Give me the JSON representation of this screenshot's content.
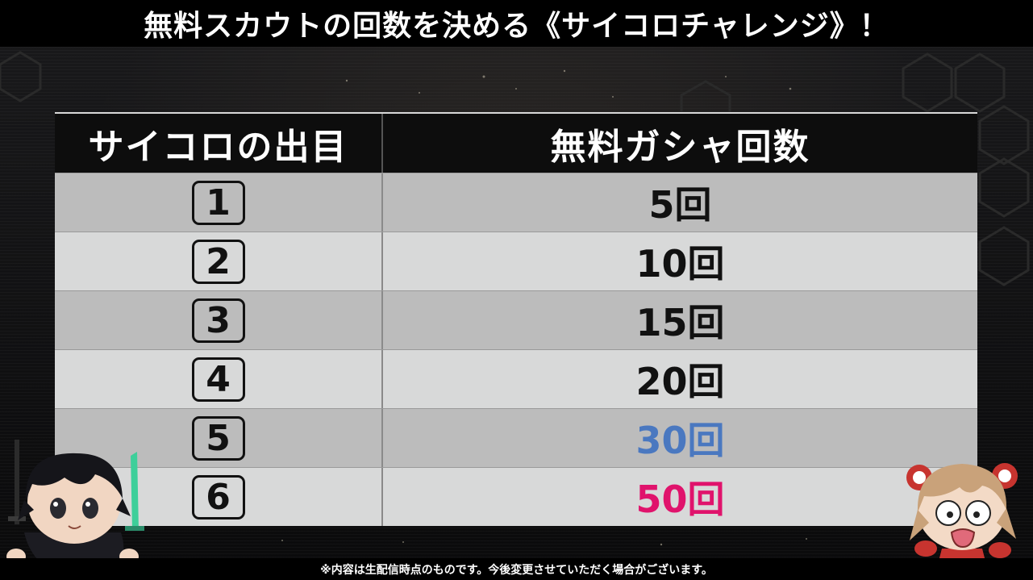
{
  "title": "無料スカウトの回数を決める《サイコロチャレンジ》！",
  "table": {
    "header_roll": "サイコロの出目",
    "header_count": "無料ガシャ回数",
    "rows": [
      {
        "roll": "1",
        "count": "5回",
        "color": "#111111"
      },
      {
        "roll": "2",
        "count": "10回",
        "color": "#111111"
      },
      {
        "roll": "3",
        "count": "15回",
        "color": "#111111"
      },
      {
        "roll": "4",
        "count": "20回",
        "color": "#111111"
      },
      {
        "roll": "5",
        "count": "30回",
        "color": "#4a78c0"
      },
      {
        "roll": "6",
        "count": "50回",
        "color": "#e0136c"
      }
    ]
  },
  "footnote": "※内容は生配信時点のものです。今後変更させていただく場合がございます。",
  "icons": {
    "left_character": "swordsman-chibi-character",
    "right_character": "crying-girl-chibi-character"
  }
}
